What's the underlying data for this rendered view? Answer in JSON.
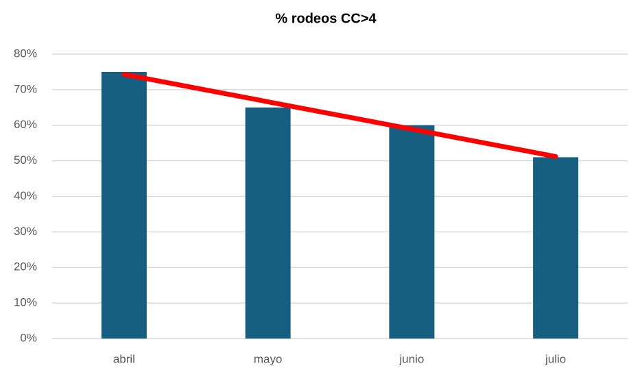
{
  "chart_data": {
    "type": "bar",
    "title": "% rodeos CC>4",
    "categories": [
      "abril",
      "mayo",
      "junio",
      "julio"
    ],
    "values": [
      75,
      65,
      60,
      51
    ],
    "color": "#175f80",
    "trendline": {
      "color": "#ff0000",
      "values": [
        74.3,
        66.6,
        58.9,
        51.2
      ]
    },
    "ylim": [
      0,
      80
    ],
    "yticks": [
      {
        "value": 0,
        "label": "0%"
      },
      {
        "value": 10,
        "label": "10%"
      },
      {
        "value": 20,
        "label": "20%"
      },
      {
        "value": 30,
        "label": "30%"
      },
      {
        "value": 40,
        "label": "40%"
      },
      {
        "value": 50,
        "label": "50%"
      },
      {
        "value": 60,
        "label": "60%"
      },
      {
        "value": 70,
        "label": "70%"
      },
      {
        "value": 80,
        "label": "80%"
      }
    ],
    "grid": true
  }
}
